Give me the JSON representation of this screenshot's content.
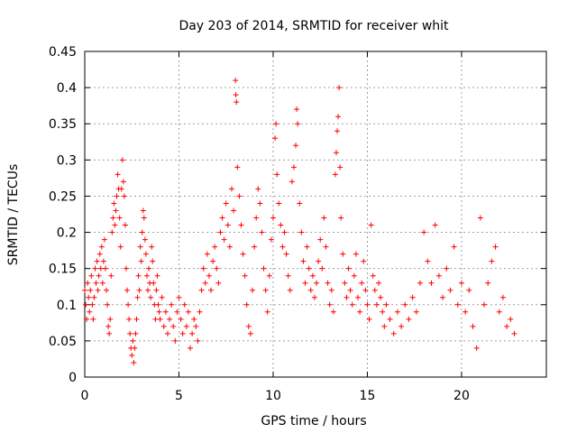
{
  "chart_data": {
    "type": "scatter",
    "title": "Day 203 of 2014, SRMTID for receiver whit",
    "xlabel": "GPS time / hours",
    "ylabel": "SRMTID / TECUs",
    "xlim": [
      0,
      24.5
    ],
    "ylim": [
      0,
      0.45
    ],
    "x_ticks": [
      0,
      5,
      10,
      15,
      20
    ],
    "x_tick_labels": [
      "0",
      "5",
      "10",
      "15",
      "20"
    ],
    "y_ticks": [
      0,
      0.05,
      0.1,
      0.15,
      0.2,
      0.25,
      0.3,
      0.35,
      0.4,
      0.45
    ],
    "y_tick_labels": [
      "0",
      "0.05",
      "0.1",
      "0.15",
      "0.2",
      "0.25",
      "0.3",
      "0.35",
      "0.4",
      "0.45"
    ],
    "grid": true,
    "marker": "+",
    "marker_color": "#ff0000",
    "series": [
      {
        "name": "SRMTID",
        "points": [
          [
            0.0,
            0.12
          ],
          [
            0.05,
            0.1
          ],
          [
            0.1,
            0.08
          ],
          [
            0.15,
            0.13
          ],
          [
            0.2,
            0.11
          ],
          [
            0.25,
            0.09
          ],
          [
            0.3,
            0.12
          ],
          [
            0.35,
            0.14
          ],
          [
            0.4,
            0.1
          ],
          [
            0.45,
            0.08
          ],
          [
            0.5,
            0.11
          ],
          [
            0.55,
            0.15
          ],
          [
            0.6,
            0.13
          ],
          [
            0.65,
            0.16
          ],
          [
            0.7,
            0.12
          ],
          [
            0.75,
            0.14
          ],
          [
            0.8,
            0.17
          ],
          [
            0.85,
            0.15
          ],
          [
            0.9,
            0.18
          ],
          [
            0.95,
            0.13
          ],
          [
            1.0,
            0.16
          ],
          [
            1.05,
            0.19
          ],
          [
            1.1,
            0.15
          ],
          [
            1.15,
            0.12
          ],
          [
            1.2,
            0.1
          ],
          [
            1.25,
            0.07
          ],
          [
            1.3,
            0.06
          ],
          [
            1.35,
            0.08
          ],
          [
            1.4,
            0.14
          ],
          [
            1.45,
            0.2
          ],
          [
            1.5,
            0.22
          ],
          [
            1.55,
            0.24
          ],
          [
            1.6,
            0.21
          ],
          [
            1.65,
            0.23
          ],
          [
            1.7,
            0.25
          ],
          [
            1.75,
            0.28
          ],
          [
            1.8,
            0.26
          ],
          [
            1.85,
            0.22
          ],
          [
            1.9,
            0.18
          ],
          [
            1.95,
            0.26
          ],
          [
            2.0,
            0.3
          ],
          [
            2.05,
            0.27
          ],
          [
            2.1,
            0.25
          ],
          [
            2.15,
            0.21
          ],
          [
            2.2,
            0.15
          ],
          [
            2.25,
            0.12
          ],
          [
            2.3,
            0.1
          ],
          [
            2.35,
            0.08
          ],
          [
            2.4,
            0.06
          ],
          [
            2.45,
            0.04
          ],
          [
            2.5,
            0.03
          ],
          [
            2.55,
            0.05
          ],
          [
            2.6,
            0.02
          ],
          [
            2.65,
            0.04
          ],
          [
            2.7,
            0.06
          ],
          [
            2.75,
            0.08
          ],
          [
            2.8,
            0.11
          ],
          [
            2.85,
            0.14
          ],
          [
            2.9,
            0.12
          ],
          [
            2.95,
            0.18
          ],
          [
            3.0,
            0.16
          ],
          [
            3.05,
            0.2
          ],
          [
            3.1,
            0.23
          ],
          [
            3.15,
            0.22
          ],
          [
            3.2,
            0.19
          ],
          [
            3.25,
            0.17
          ],
          [
            3.3,
            0.14
          ],
          [
            3.35,
            0.12
          ],
          [
            3.4,
            0.15
          ],
          [
            3.45,
            0.13
          ],
          [
            3.5,
            0.11
          ],
          [
            3.55,
            0.18
          ],
          [
            3.6,
            0.16
          ],
          [
            3.65,
            0.13
          ],
          [
            3.7,
            0.1
          ],
          [
            3.75,
            0.08
          ],
          [
            3.8,
            0.12
          ],
          [
            3.85,
            0.14
          ],
          [
            3.9,
            0.1
          ],
          [
            3.95,
            0.09
          ],
          [
            4.0,
            0.08
          ],
          [
            4.1,
            0.11
          ],
          [
            4.2,
            0.07
          ],
          [
            4.3,
            0.09
          ],
          [
            4.4,
            0.06
          ],
          [
            4.5,
            0.08
          ],
          [
            4.6,
            0.1
          ],
          [
            4.7,
            0.07
          ],
          [
            4.8,
            0.05
          ],
          [
            4.9,
            0.09
          ],
          [
            5.0,
            0.11
          ],
          [
            5.1,
            0.08
          ],
          [
            5.2,
            0.06
          ],
          [
            5.3,
            0.1
          ],
          [
            5.4,
            0.07
          ],
          [
            5.5,
            0.09
          ],
          [
            5.6,
            0.04
          ],
          [
            5.7,
            0.06
          ],
          [
            5.8,
            0.08
          ],
          [
            5.9,
            0.07
          ],
          [
            6.0,
            0.05
          ],
          [
            6.1,
            0.09
          ],
          [
            6.2,
            0.12
          ],
          [
            6.3,
            0.15
          ],
          [
            6.4,
            0.13
          ],
          [
            6.5,
            0.17
          ],
          [
            6.6,
            0.14
          ],
          [
            6.7,
            0.12
          ],
          [
            6.8,
            0.16
          ],
          [
            6.9,
            0.18
          ],
          [
            7.0,
            0.15
          ],
          [
            7.1,
            0.13
          ],
          [
            7.2,
            0.2
          ],
          [
            7.3,
            0.22
          ],
          [
            7.4,
            0.19
          ],
          [
            7.5,
            0.24
          ],
          [
            7.6,
            0.21
          ],
          [
            7.7,
            0.18
          ],
          [
            7.8,
            0.26
          ],
          [
            7.9,
            0.23
          ],
          [
            8.0,
            0.41
          ],
          [
            8.02,
            0.39
          ],
          [
            8.05,
            0.38
          ],
          [
            8.1,
            0.29
          ],
          [
            8.2,
            0.25
          ],
          [
            8.3,
            0.21
          ],
          [
            8.4,
            0.17
          ],
          [
            8.5,
            0.14
          ],
          [
            8.6,
            0.1
          ],
          [
            8.7,
            0.07
          ],
          [
            8.8,
            0.06
          ],
          [
            8.9,
            0.12
          ],
          [
            9.0,
            0.18
          ],
          [
            9.1,
            0.22
          ],
          [
            9.2,
            0.26
          ],
          [
            9.3,
            0.24
          ],
          [
            9.4,
            0.2
          ],
          [
            9.5,
            0.15
          ],
          [
            9.6,
            0.12
          ],
          [
            9.7,
            0.09
          ],
          [
            9.8,
            0.14
          ],
          [
            9.9,
            0.19
          ],
          [
            10.0,
            0.22
          ],
          [
            10.1,
            0.33
          ],
          [
            10.15,
            0.35
          ],
          [
            10.2,
            0.28
          ],
          [
            10.3,
            0.24
          ],
          [
            10.4,
            0.21
          ],
          [
            10.5,
            0.18
          ],
          [
            10.6,
            0.2
          ],
          [
            10.7,
            0.17
          ],
          [
            10.8,
            0.14
          ],
          [
            10.9,
            0.12
          ],
          [
            11.0,
            0.27
          ],
          [
            11.1,
            0.29
          ],
          [
            11.2,
            0.32
          ],
          [
            11.25,
            0.37
          ],
          [
            11.3,
            0.35
          ],
          [
            11.4,
            0.24
          ],
          [
            11.5,
            0.2
          ],
          [
            11.6,
            0.16
          ],
          [
            11.7,
            0.13
          ],
          [
            11.8,
            0.18
          ],
          [
            11.9,
            0.15
          ],
          [
            12.0,
            0.12
          ],
          [
            12.1,
            0.14
          ],
          [
            12.2,
            0.11
          ],
          [
            12.3,
            0.13
          ],
          [
            12.4,
            0.16
          ],
          [
            12.5,
            0.19
          ],
          [
            12.6,
            0.15
          ],
          [
            12.7,
            0.22
          ],
          [
            12.8,
            0.18
          ],
          [
            12.9,
            0.13
          ],
          [
            13.0,
            0.1
          ],
          [
            13.1,
            0.12
          ],
          [
            13.2,
            0.09
          ],
          [
            13.3,
            0.28
          ],
          [
            13.35,
            0.31
          ],
          [
            13.4,
            0.34
          ],
          [
            13.45,
            0.36
          ],
          [
            13.5,
            0.4
          ],
          [
            13.55,
            0.29
          ],
          [
            13.6,
            0.22
          ],
          [
            13.7,
            0.17
          ],
          [
            13.8,
            0.13
          ],
          [
            13.9,
            0.11
          ],
          [
            14.0,
            0.15
          ],
          [
            14.1,
            0.12
          ],
          [
            14.2,
            0.1
          ],
          [
            14.3,
            0.14
          ],
          [
            14.4,
            0.17
          ],
          [
            14.5,
            0.11
          ],
          [
            14.6,
            0.09
          ],
          [
            14.7,
            0.13
          ],
          [
            14.8,
            0.16
          ],
          [
            14.9,
            0.12
          ],
          [
            15.0,
            0.1
          ],
          [
            15.1,
            0.08
          ],
          [
            15.2,
            0.21
          ],
          [
            15.3,
            0.14
          ],
          [
            15.4,
            0.12
          ],
          [
            15.5,
            0.1
          ],
          [
            15.6,
            0.13
          ],
          [
            15.7,
            0.11
          ],
          [
            15.8,
            0.09
          ],
          [
            15.9,
            0.07
          ],
          [
            16.0,
            0.1
          ],
          [
            16.2,
            0.08
          ],
          [
            16.4,
            0.06
          ],
          [
            16.6,
            0.09
          ],
          [
            16.8,
            0.07
          ],
          [
            17.0,
            0.1
          ],
          [
            17.2,
            0.08
          ],
          [
            17.4,
            0.11
          ],
          [
            17.6,
            0.09
          ],
          [
            17.8,
            0.13
          ],
          [
            18.0,
            0.2
          ],
          [
            18.2,
            0.16
          ],
          [
            18.4,
            0.13
          ],
          [
            18.6,
            0.21
          ],
          [
            18.8,
            0.14
          ],
          [
            19.0,
            0.11
          ],
          [
            19.2,
            0.15
          ],
          [
            19.4,
            0.12
          ],
          [
            19.6,
            0.18
          ],
          [
            19.8,
            0.1
          ],
          [
            20.0,
            0.13
          ],
          [
            20.2,
            0.09
          ],
          [
            20.4,
            0.12
          ],
          [
            20.6,
            0.07
          ],
          [
            20.8,
            0.04
          ],
          [
            21.0,
            0.22
          ],
          [
            21.2,
            0.1
          ],
          [
            21.4,
            0.13
          ],
          [
            21.6,
            0.16
          ],
          [
            21.8,
            0.18
          ],
          [
            22.0,
            0.09
          ],
          [
            22.2,
            0.11
          ],
          [
            22.4,
            0.07
          ],
          [
            22.6,
            0.08
          ],
          [
            22.8,
            0.06
          ]
        ]
      }
    ]
  }
}
